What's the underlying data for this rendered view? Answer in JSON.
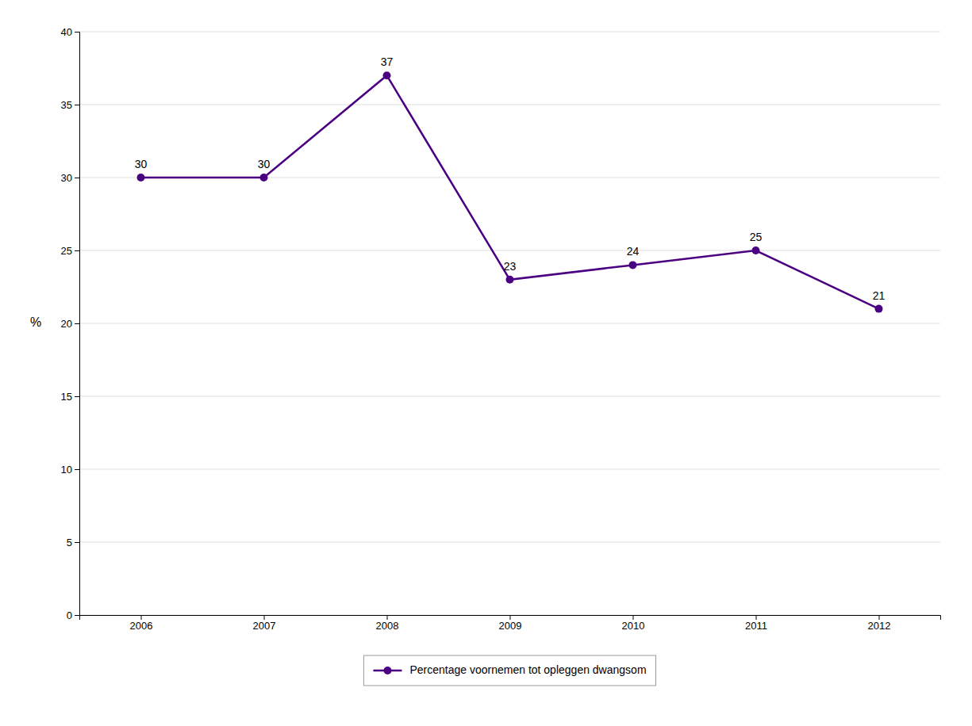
{
  "chart_data": {
    "type": "line",
    "ylabel": "%",
    "x": [
      2006,
      2007,
      2008,
      2009,
      2010,
      2011,
      2012
    ],
    "series": [
      {
        "name": "Percentage voornemen tot opleggen dwangsom",
        "color": "#4B0082",
        "marker": "circle",
        "values": [
          30,
          30,
          37,
          23,
          24,
          25,
          21
        ]
      }
    ],
    "xlim": [
      2005.5,
      2012.5
    ],
    "xticks": [
      2006,
      2007,
      2008,
      2009,
      2010,
      2011,
      2012
    ],
    "ylim": [
      0,
      40
    ],
    "yticks": [
      0,
      5,
      10,
      15,
      20,
      25,
      30,
      35,
      40
    ],
    "grid": "y",
    "legend": "bottom",
    "data_labels": true
  }
}
